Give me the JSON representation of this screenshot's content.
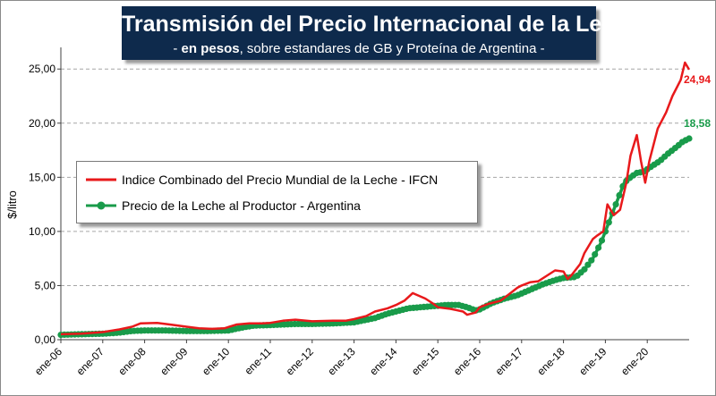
{
  "header": {
    "title": "Transmisión del Precio Internacional de la Leche",
    "subtitle_prefix": "- ",
    "subtitle_bold": "en pesos",
    "subtitle_rest": ", sobre estandares de GB y Proteína de  Argentina -"
  },
  "colors": {
    "ifcn": "#e8191b",
    "productor": "#199b4a",
    "title_bg": "#0e2a4c"
  },
  "chart_data": {
    "type": "line",
    "title": "Transmisión del Precio Internacional de la Leche",
    "subtitle": "- en pesos, sobre estandares de GB y Proteína de  Argentina -",
    "ylabel": "$/litro",
    "xlabel": "",
    "ylim": [
      0,
      27
    ],
    "yticks": [
      "0,00",
      "5,00",
      "10,00",
      "15,00",
      "20,00",
      "25,00"
    ],
    "xticks": [
      "ene-06",
      "ene-07",
      "ene-08",
      "ene-09",
      "ene-10",
      "ene-11",
      "ene-12",
      "ene-13",
      "ene-14",
      "ene-15",
      "ene-16",
      "ene-17",
      "ene-18",
      "ene-19",
      "ene-20"
    ],
    "grid": true,
    "legend_position": "middle-left",
    "series": [
      {
        "name": "Indice Combinado del Precio Mundial de la Leche - IFCN",
        "color": "#e8191b",
        "end_label": "24,94",
        "points": [
          [
            2006.0,
            0.5
          ],
          [
            2006.5,
            0.55
          ],
          [
            2007.0,
            0.7
          ],
          [
            2007.4,
            0.95
          ],
          [
            2007.7,
            1.2
          ],
          [
            2007.9,
            1.5
          ],
          [
            2008.3,
            1.55
          ],
          [
            2008.6,
            1.4
          ],
          [
            2009.0,
            1.2
          ],
          [
            2009.3,
            1.05
          ],
          [
            2009.6,
            1.0
          ],
          [
            2009.9,
            1.05
          ],
          [
            2010.2,
            1.4
          ],
          [
            2010.5,
            1.5
          ],
          [
            2010.8,
            1.5
          ],
          [
            2011.0,
            1.55
          ],
          [
            2011.3,
            1.75
          ],
          [
            2011.6,
            1.85
          ],
          [
            2012.0,
            1.7
          ],
          [
            2012.5,
            1.75
          ],
          [
            2012.8,
            1.75
          ],
          [
            2013.0,
            1.9
          ],
          [
            2013.3,
            2.2
          ],
          [
            2013.5,
            2.6
          ],
          [
            2013.8,
            2.9
          ],
          [
            2014.0,
            3.2
          ],
          [
            2014.2,
            3.6
          ],
          [
            2014.4,
            4.3
          ],
          [
            2014.7,
            3.8
          ],
          [
            2014.9,
            3.3
          ],
          [
            2015.0,
            3.0
          ],
          [
            2015.3,
            2.85
          ],
          [
            2015.6,
            2.6
          ],
          [
            2015.7,
            2.3
          ],
          [
            2015.9,
            2.5
          ],
          [
            2016.0,
            3.0
          ],
          [
            2016.2,
            3.3
          ],
          [
            2016.5,
            3.6
          ],
          [
            2016.7,
            4.2
          ],
          [
            2016.9,
            4.8
          ],
          [
            2017.0,
            5.0
          ],
          [
            2017.2,
            5.3
          ],
          [
            2017.4,
            5.4
          ],
          [
            2017.6,
            5.9
          ],
          [
            2017.8,
            6.4
          ],
          [
            2018.0,
            6.3
          ],
          [
            2018.1,
            5.6
          ],
          [
            2018.2,
            6.0
          ],
          [
            2018.4,
            7.0
          ],
          [
            2018.5,
            8.0
          ],
          [
            2018.7,
            9.3
          ],
          [
            2018.8,
            9.6
          ],
          [
            2018.95,
            10.0
          ],
          [
            2019.05,
            12.5
          ],
          [
            2019.2,
            11.5
          ],
          [
            2019.35,
            12.0
          ],
          [
            2019.5,
            14.5
          ],
          [
            2019.6,
            17.0
          ],
          [
            2019.75,
            18.9
          ],
          [
            2019.85,
            16.5
          ],
          [
            2019.95,
            14.5
          ],
          [
            2020.05,
            16.5
          ],
          [
            2020.25,
            19.5
          ],
          [
            2020.45,
            21.0
          ],
          [
            2020.6,
            22.5
          ],
          [
            2020.8,
            24.0
          ],
          [
            2020.9,
            25.6
          ],
          [
            2021.0,
            24.94
          ]
        ]
      },
      {
        "name": "Precio de la Leche al Productor - Argentina",
        "color": "#199b4a",
        "end_label": "18,58",
        "points": [
          [
            2006.0,
            0.45
          ],
          [
            2006.5,
            0.5
          ],
          [
            2007.0,
            0.55
          ],
          [
            2007.4,
            0.65
          ],
          [
            2007.7,
            0.8
          ],
          [
            2008.0,
            0.85
          ],
          [
            2008.5,
            0.85
          ],
          [
            2009.0,
            0.8
          ],
          [
            2009.5,
            0.8
          ],
          [
            2010.0,
            0.85
          ],
          [
            2010.3,
            1.1
          ],
          [
            2010.6,
            1.3
          ],
          [
            2011.0,
            1.35
          ],
          [
            2011.3,
            1.4
          ],
          [
            2011.6,
            1.45
          ],
          [
            2012.0,
            1.45
          ],
          [
            2012.5,
            1.5
          ],
          [
            2013.0,
            1.6
          ],
          [
            2013.5,
            2.0
          ],
          [
            2013.8,
            2.4
          ],
          [
            2014.0,
            2.6
          ],
          [
            2014.3,
            2.9
          ],
          [
            2014.6,
            3.0
          ],
          [
            2014.9,
            3.1
          ],
          [
            2015.2,
            3.2
          ],
          [
            2015.5,
            3.2
          ],
          [
            2015.7,
            3.0
          ],
          [
            2015.9,
            2.7
          ],
          [
            2016.0,
            2.8
          ],
          [
            2016.3,
            3.4
          ],
          [
            2016.6,
            3.8
          ],
          [
            2016.9,
            4.1
          ],
          [
            2017.2,
            4.6
          ],
          [
            2017.5,
            5.1
          ],
          [
            2017.8,
            5.5
          ],
          [
            2018.0,
            5.7
          ],
          [
            2018.3,
            5.8
          ],
          [
            2018.5,
            6.5
          ],
          [
            2018.7,
            7.5
          ],
          [
            2018.9,
            9.0
          ],
          [
            2019.0,
            10.0
          ],
          [
            2019.15,
            11.5
          ],
          [
            2019.3,
            13.0
          ],
          [
            2019.45,
            14.5
          ],
          [
            2019.6,
            15.0
          ],
          [
            2019.75,
            15.4
          ],
          [
            2019.9,
            15.5
          ],
          [
            2020.1,
            16.0
          ],
          [
            2020.3,
            16.5
          ],
          [
            2020.5,
            17.2
          ],
          [
            2020.7,
            17.8
          ],
          [
            2020.85,
            18.3
          ],
          [
            2021.0,
            18.58
          ]
        ]
      }
    ]
  }
}
